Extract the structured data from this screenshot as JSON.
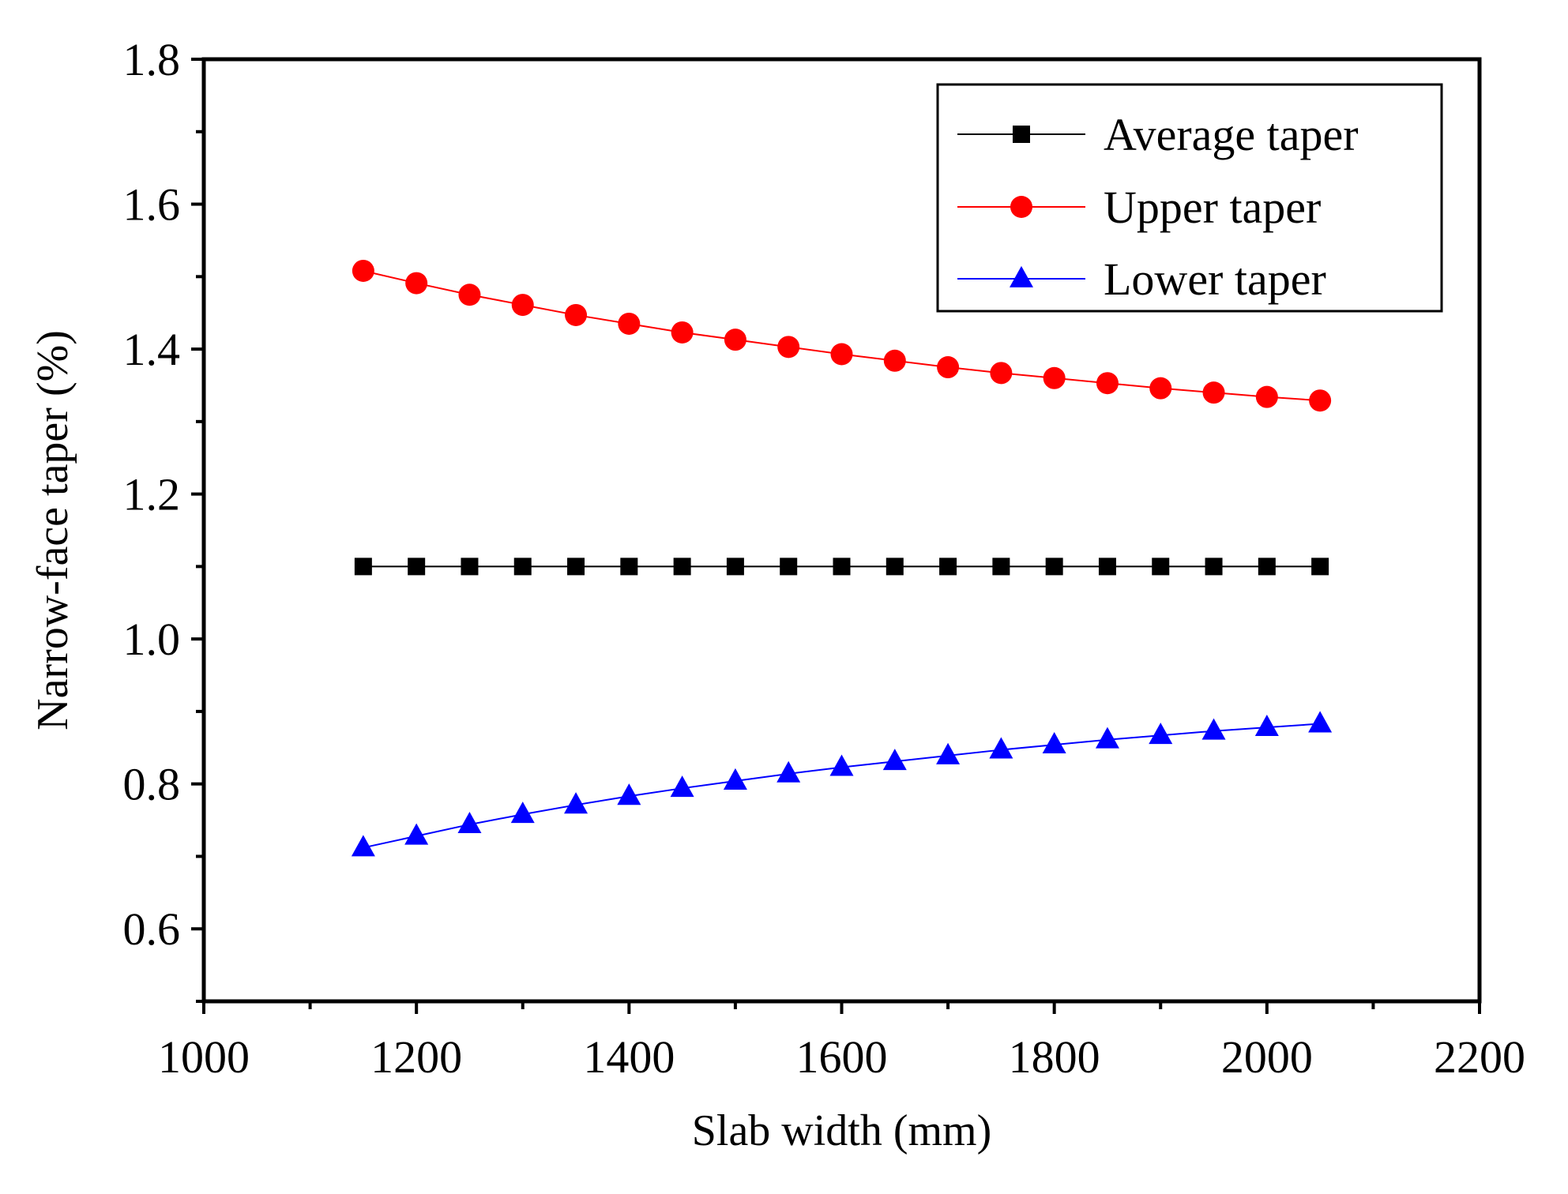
{
  "chart_data": {
    "type": "line",
    "title": "",
    "xlabel": "Slab width (mm)",
    "ylabel": "Narrow-face taper (%)",
    "xlim": [
      1000,
      2200
    ],
    "ylim": [
      0.5,
      1.8
    ],
    "xticks": [
      1000,
      1200,
      1400,
      1600,
      1800,
      2000,
      2200
    ],
    "xtick_labels": [
      "1000",
      "1200",
      "1400",
      "1600",
      "1800",
      "2000",
      "2200"
    ],
    "yticks": [
      0.6,
      0.8,
      1.0,
      1.2,
      1.4,
      1.6,
      1.8
    ],
    "ytick_labels": [
      "0.6",
      "0.8",
      "1.0",
      "1.2",
      "1.4",
      "1.6",
      "1.8"
    ],
    "grid": false,
    "legend_position": "top-right",
    "x": [
      1150,
      1200,
      1250,
      1300,
      1350,
      1400,
      1450,
      1500,
      1550,
      1600,
      1650,
      1700,
      1750,
      1800,
      1850,
      1900,
      1950,
      2000,
      2050
    ],
    "series": [
      {
        "name": "Average taper",
        "color": "#000000",
        "marker": "square",
        "values": [
          1.1,
          1.1,
          1.1,
          1.1,
          1.1,
          1.1,
          1.1,
          1.1,
          1.1,
          1.1,
          1.1,
          1.1,
          1.1,
          1.1,
          1.1,
          1.1,
          1.1,
          1.1,
          1.1
        ]
      },
      {
        "name": "Upper taper",
        "color": "#ff0000",
        "marker": "circle",
        "values": [
          1.508,
          1.491,
          1.475,
          1.461,
          1.447,
          1.435,
          1.423,
          1.413,
          1.403,
          1.393,
          1.384,
          1.375,
          1.367,
          1.36,
          1.353,
          1.346,
          1.34,
          1.334,
          1.329
        ]
      },
      {
        "name": "Lower taper",
        "color": "#0000ff",
        "marker": "triangle",
        "values": [
          0.712,
          0.728,
          0.744,
          0.758,
          0.771,
          0.783,
          0.794,
          0.804,
          0.814,
          0.823,
          0.831,
          0.839,
          0.847,
          0.854,
          0.861,
          0.867,
          0.873,
          0.878,
          0.883
        ]
      }
    ]
  }
}
